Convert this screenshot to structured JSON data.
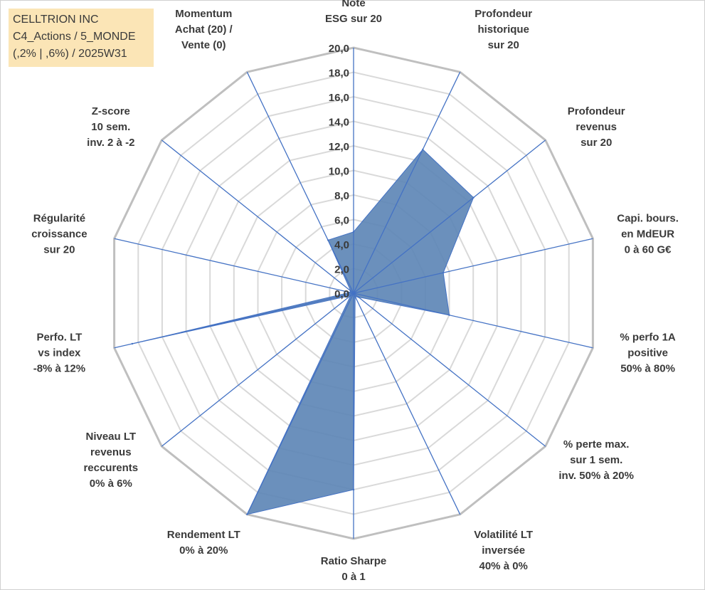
{
  "title_lines": [
    "CELLTRION INC",
    "C4_Actions / 5_MONDE",
    "(,2% | ,6%) / 2025W31"
  ],
  "chart_data": {
    "type": "radar",
    "title": "CELLTRION INC",
    "rlim": [
      0,
      20
    ],
    "tick_step": 2,
    "tick_labels": [
      "0,0",
      "2,0",
      "4,0",
      "6,0",
      "8,0",
      "10,0",
      "12,0",
      "14,0",
      "16,0",
      "18,0",
      "20,0"
    ],
    "grid": true,
    "axes": [
      [
        "Note",
        "ESG sur 20"
      ],
      [
        "Profondeur",
        "historique",
        "sur 20"
      ],
      [
        "Profondeur",
        "revenus",
        "sur 20"
      ],
      [
        "Capi. bours.",
        "en MdEUR",
        "0 à 60 G€"
      ],
      [
        "% perfo 1A",
        "positive",
        "50% à 80%"
      ],
      [
        "% perte max.",
        "sur 1 sem.",
        "inv. 50% à 20%"
      ],
      [
        "Volatilité LT",
        "inversée",
        "40% à 0%"
      ],
      [
        "Ratio Sharpe",
        "0 à 1"
      ],
      [
        "Rendement LT",
        "0% à 20%"
      ],
      [
        "Niveau LT",
        "revenus",
        "reccurents",
        "0% à 6%"
      ],
      [
        "Perfo. LT",
        "vs index",
        "-8% à 12%"
      ],
      [
        "Régularité",
        "croissance",
        "sur 20"
      ],
      [
        "Z-score",
        "10 sem.",
        "inv. 2 à -2"
      ],
      [
        "Momentum",
        "Achat (20) /",
        "Vente (0)"
      ]
    ],
    "series": [
      {
        "values": [
          5.0,
          13.0,
          12.5,
          7.5,
          8.0,
          0.5,
          0.3,
          16.0,
          20.0,
          0.3,
          18.5,
          0.3,
          0.3,
          4.8
        ],
        "fill": "#5b84b5",
        "stroke": "#4472c4"
      }
    ]
  }
}
